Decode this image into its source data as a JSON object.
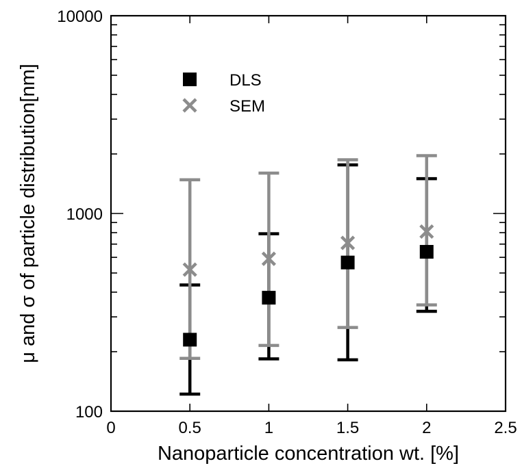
{
  "chart_data": {
    "type": "scatter",
    "xlabel": "Nanoparticle concentration wt. [%]",
    "ylabel": "μ and σ of particle distribution[nm]",
    "xlim": [
      0,
      2.5
    ],
    "ylim": [
      100,
      10000
    ],
    "yscale": "log",
    "xticks": [
      "0",
      "0.5",
      "1",
      "1.5",
      "2",
      "2.5"
    ],
    "yticks": [
      "100",
      "1000",
      "10000"
    ],
    "grid": false,
    "legend_position": "top-left",
    "series": [
      {
        "name": "DLS",
        "marker": "square",
        "color": "#000000",
        "errorbar_color": "#000000",
        "points": [
          {
            "x": 0.5,
            "y": 230,
            "lower": 122,
            "upper": 435
          },
          {
            "x": 1.0,
            "y": 375,
            "lower": 184,
            "upper": 790
          },
          {
            "x": 1.5,
            "y": 565,
            "lower": 182,
            "upper": 1760
          },
          {
            "x": 2.0,
            "y": 640,
            "lower": 320,
            "upper": 1500
          }
        ]
      },
      {
        "name": "SEM",
        "marker": "x",
        "color": "#8c8c8c",
        "errorbar_color": "#8c8c8c",
        "points": [
          {
            "x": 0.5,
            "y": 520,
            "lower": 185,
            "upper": 1480
          },
          {
            "x": 1.0,
            "y": 590,
            "lower": 215,
            "upper": 1600
          },
          {
            "x": 1.5,
            "y": 710,
            "lower": 265,
            "upper": 1870
          },
          {
            "x": 2.0,
            "y": 810,
            "lower": 345,
            "upper": 1960
          }
        ]
      }
    ]
  }
}
